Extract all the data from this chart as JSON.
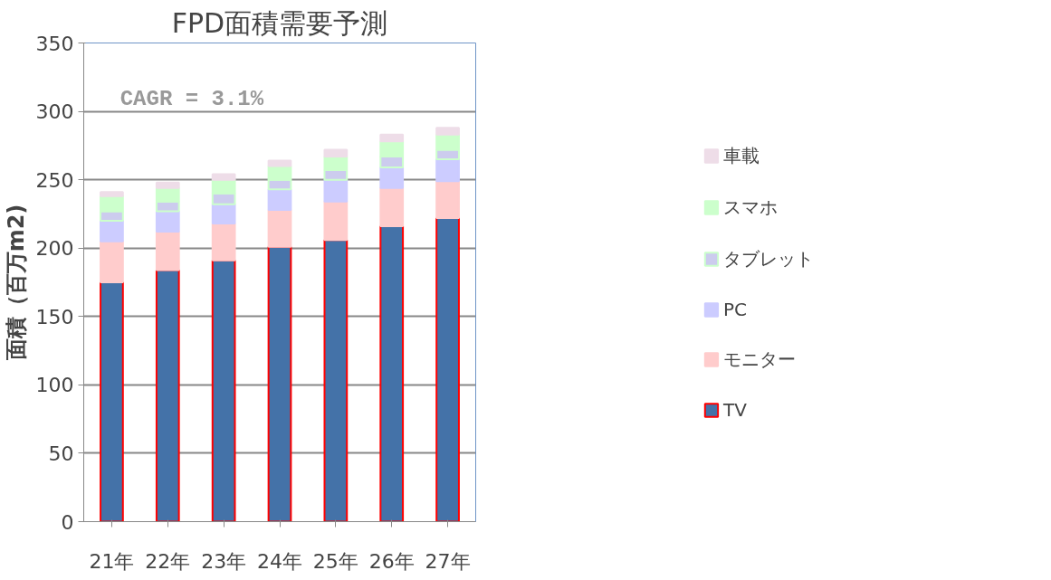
{
  "chart_data": {
    "type": "bar",
    "title": "FPD面積需要予測",
    "ylabel": "面積（百万m2)",
    "stacked": true,
    "categories": [
      "21年",
      "22年",
      "23年",
      "24年",
      "25年",
      "26年",
      "27年"
    ],
    "series": [
      {
        "name": "TV",
        "color": "#4472a8",
        "values": [
          175,
          184,
          191,
          201,
          206,
          216,
          222
        ]
      },
      {
        "name": "モニター",
        "color": "#ffcccc",
        "values": [
          30,
          28,
          27,
          27,
          28,
          28,
          27
        ]
      },
      {
        "name": "PC",
        "color": "#ccccff",
        "values": [
          15,
          15,
          14,
          15,
          16,
          15,
          16
        ]
      },
      {
        "name": "タブレット",
        "color": "#ccccee",
        "values": [
          7,
          7,
          8,
          7,
          7,
          8,
          7
        ]
      },
      {
        "name": "スマホ",
        "color": "#ccffcc",
        "values": [
          11,
          10,
          10,
          10,
          10,
          11,
          11
        ]
      },
      {
        "name": "車載",
        "color": "#eedde8",
        "values": [
          3,
          4,
          4,
          4,
          5,
          5,
          5
        ]
      }
    ],
    "ylim": [
      0,
      350
    ],
    "yticks": [
      0,
      50,
      100,
      150,
      200,
      250,
      300,
      350
    ],
    "grid": "y",
    "legend": "right",
    "annotations": [
      "CAGR = 3.1%"
    ]
  }
}
